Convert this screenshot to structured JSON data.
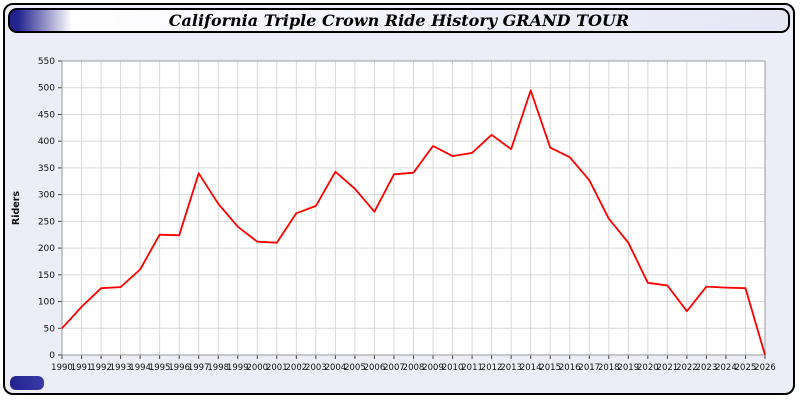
{
  "page": {
    "title": "California Triple Crown Ride History GRAND TOUR"
  },
  "chart_data": {
    "type": "line",
    "title": "California Triple Crown Ride History GRAND TOUR",
    "xlabel": "",
    "ylabel": "Riders",
    "ylim": [
      0,
      550
    ],
    "ytick_step": 50,
    "grid": true,
    "legend_position": "none",
    "line_color": "#ff0000",
    "plot_background": "#ffffff",
    "page_background": "#ededf8",
    "grid_color": "#d9d9d9",
    "categories": [
      "1990",
      "1991",
      "1992",
      "1993",
      "1994",
      "1995",
      "1996",
      "1997",
      "1998",
      "1999",
      "2000",
      "2001",
      "2002",
      "2003",
      "2004",
      "2005",
      "2006",
      "2007",
      "2008",
      "2009",
      "2010",
      "2011",
      "2012",
      "2013",
      "2014",
      "2015",
      "2016",
      "2017",
      "2018",
      "2019",
      "2020",
      "2021",
      "2022",
      "2023",
      "2024",
      "2025",
      "2026"
    ],
    "values": [
      50,
      90,
      125,
      127,
      160,
      225,
      224,
      340,
      283,
      240,
      212,
      210,
      265,
      279,
      343,
      311,
      268,
      338,
      341,
      391,
      372,
      378,
      412,
      385,
      495,
      388,
      370,
      327,
      255,
      210,
      135,
      130,
      82,
      128,
      126,
      125,
      0
    ]
  }
}
